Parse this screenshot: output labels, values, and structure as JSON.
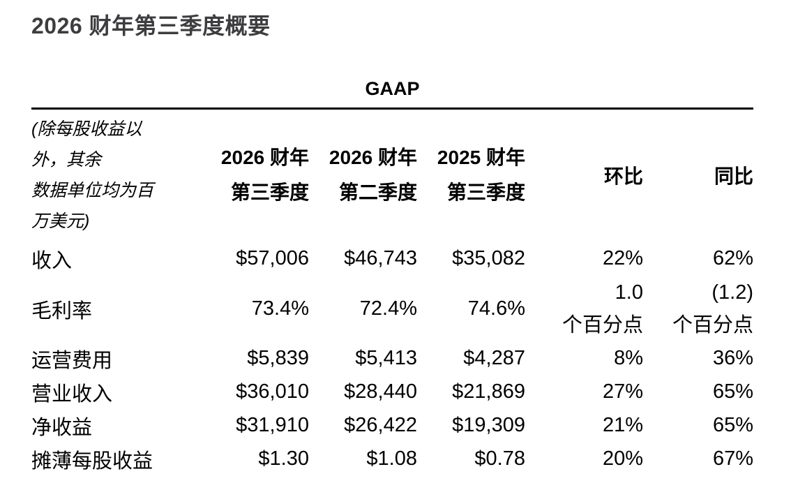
{
  "page": {
    "title": "2026 财年第三季度概要"
  },
  "table": {
    "section_header": "GAAP",
    "note_lines": {
      "l1": "(除每股收益以",
      "l2": "外，其余",
      "l3": "数据单位均为百",
      "l4": "万美元)"
    },
    "columns": {
      "col1_line1": "2026 财年",
      "col1_line2": "第三季度",
      "col2_line1": "2026 财年",
      "col2_line2": "第二季度",
      "col3_line1": "2025 财年",
      "col3_line2": "第三季度",
      "qoq": "环比",
      "yoy": "同比"
    },
    "rows": [
      {
        "label": "收入",
        "c1": "$57,006",
        "c2": "$46,743",
        "c3": "$35,082",
        "qoq": "22%",
        "yoy": "62%"
      },
      {
        "label": "毛利率",
        "c1": "73.4%",
        "c2": "72.4%",
        "c3": "74.6%",
        "qoq": "1.0",
        "qoq_unit": "个百分点",
        "yoy": "(1.2)",
        "yoy_unit": "个百分点"
      },
      {
        "label": "运营费用",
        "c1": "$5,839",
        "c2": "$5,413",
        "c3": "$4,287",
        "qoq": "8%",
        "yoy": "36%"
      },
      {
        "label": "营业收入",
        "c1": "$36,010",
        "c2": "$28,440",
        "c3": "$21,869",
        "qoq": "27%",
        "yoy": "65%"
      },
      {
        "label": "净收益",
        "c1": "$31,910",
        "c2": "$26,422",
        "c3": "$19,309",
        "qoq": "21%",
        "yoy": "65%"
      },
      {
        "label": "摊薄每股收益",
        "c1": "$1.30",
        "c2": "$1.08",
        "c3": "$0.78",
        "qoq": "20%",
        "yoy": "67%"
      }
    ]
  }
}
